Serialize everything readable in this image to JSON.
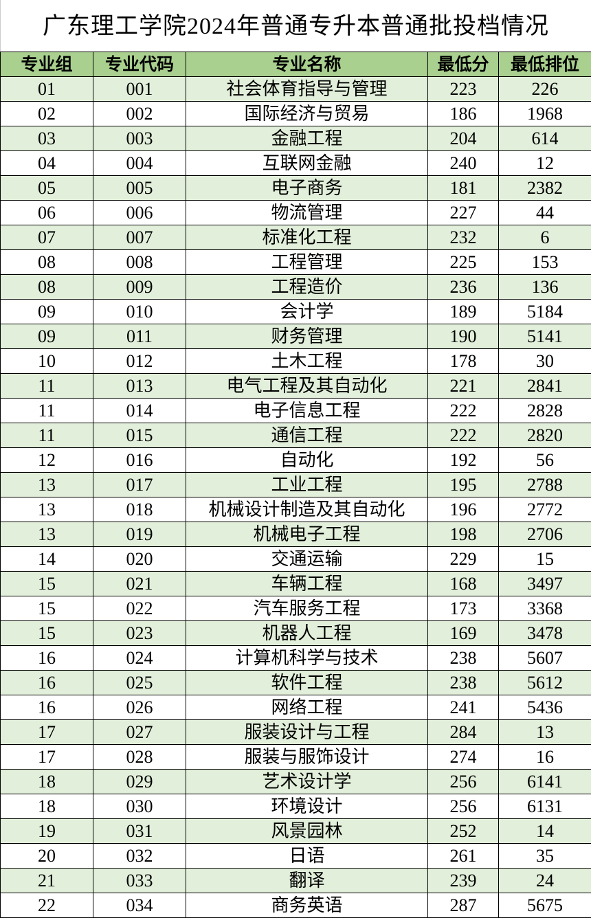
{
  "title": "广东理工学院2024年普通专升本普通批投档情况",
  "colors": {
    "header_bg": "#a9d08e",
    "alt_row_bg": "#e2efda"
  },
  "columns": [
    "专业组",
    "专业代码",
    "专业名称",
    "最低分",
    "最低排位"
  ],
  "rows": [
    [
      "01",
      "001",
      "社会体育指导与管理",
      "223",
      "226"
    ],
    [
      "02",
      "002",
      "国际经济与贸易",
      "186",
      "1968"
    ],
    [
      "03",
      "003",
      "金融工程",
      "204",
      "614"
    ],
    [
      "04",
      "004",
      "互联网金融",
      "240",
      "12"
    ],
    [
      "05",
      "005",
      "电子商务",
      "181",
      "2382"
    ],
    [
      "06",
      "006",
      "物流管理",
      "227",
      "44"
    ],
    [
      "07",
      "007",
      "标准化工程",
      "232",
      "6"
    ],
    [
      "08",
      "008",
      "工程管理",
      "225",
      "153"
    ],
    [
      "08",
      "009",
      "工程造价",
      "236",
      "136"
    ],
    [
      "09",
      "010",
      "会计学",
      "189",
      "5184"
    ],
    [
      "09",
      "011",
      "财务管理",
      "190",
      "5141"
    ],
    [
      "10",
      "012",
      "土木工程",
      "178",
      "30"
    ],
    [
      "11",
      "013",
      "电气工程及其自动化",
      "221",
      "2841"
    ],
    [
      "11",
      "014",
      "电子信息工程",
      "222",
      "2828"
    ],
    [
      "11",
      "015",
      "通信工程",
      "222",
      "2820"
    ],
    [
      "12",
      "016",
      "自动化",
      "192",
      "56"
    ],
    [
      "13",
      "017",
      "工业工程",
      "195",
      "2788"
    ],
    [
      "13",
      "018",
      "机械设计制造及其自动化",
      "196",
      "2772"
    ],
    [
      "13",
      "019",
      "机械电子工程",
      "198",
      "2706"
    ],
    [
      "14",
      "020",
      "交通运输",
      "229",
      "15"
    ],
    [
      "15",
      "021",
      "车辆工程",
      "168",
      "3497"
    ],
    [
      "15",
      "022",
      "汽车服务工程",
      "173",
      "3368"
    ],
    [
      "15",
      "023",
      "机器人工程",
      "169",
      "3478"
    ],
    [
      "16",
      "024",
      "计算机科学与技术",
      "238",
      "5607"
    ],
    [
      "16",
      "025",
      "软件工程",
      "238",
      "5612"
    ],
    [
      "16",
      "026",
      "网络工程",
      "241",
      "5436"
    ],
    [
      "17",
      "027",
      "服装设计与工程",
      "284",
      "13"
    ],
    [
      "17",
      "028",
      "服装与服饰设计",
      "274",
      "16"
    ],
    [
      "18",
      "029",
      "艺术设计学",
      "256",
      "6141"
    ],
    [
      "18",
      "030",
      "环境设计",
      "256",
      "6131"
    ],
    [
      "19",
      "031",
      "风景园林",
      "252",
      "14"
    ],
    [
      "20",
      "032",
      "日语",
      "261",
      "35"
    ],
    [
      "21",
      "033",
      "翻译",
      "239",
      "24"
    ],
    [
      "22",
      "034",
      "商务英语",
      "287",
      "5675"
    ]
  ]
}
